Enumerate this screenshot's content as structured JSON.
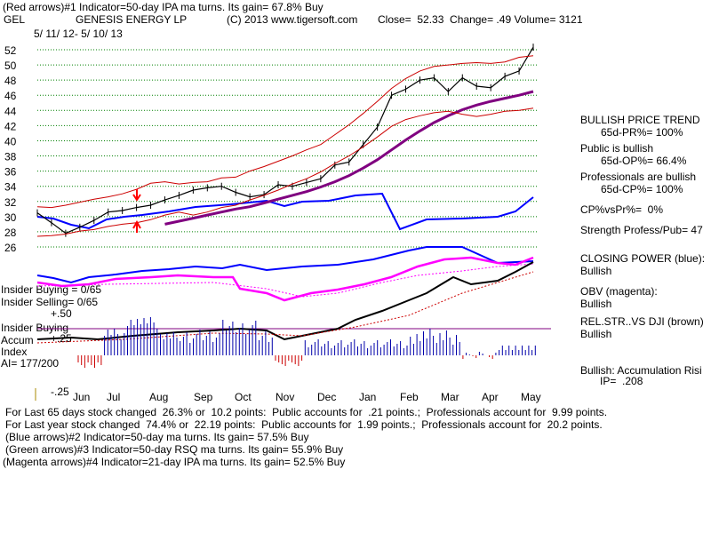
{
  "header": {
    "red_arrows_line": "(Red arrows)#1 Indicator=50-day IPA ma turns. Its gain= 67.8% Buy",
    "symbol": "GEL",
    "company": "GENESIS ENERGY LP",
    "copyright": "(C) 2013 www.tigersoft.com",
    "quote": "Close=  52.33  Change= .49 Volume= 3121",
    "date_range": "5/ 11/ 12- 5/ 10/ 13"
  },
  "right_panel": {
    "bullish_trend": "BULLISH PRICE TREND",
    "pr": "65d-PR%= 100%",
    "public_bullish": "Public is bullish",
    "op": "65d-OP%= 66.4%",
    "pros_bullish": "Professionals are bullish",
    "cp": "65d-CP%= 100%",
    "cpvspr": "CP%vsPr%=  0%",
    "strength": "Strength Profess/Pub= 47",
    "closing_power_title": "CLOSING POWER (blue):",
    "closing_power_value": "Bullish",
    "obv_title": "OBV (magenta):",
    "obv_value": "Bullish",
    "relstr_title": "REL.STR..VS DJI (brown)",
    "relstr_value": "Bullish",
    "accum_risk": "Bullish: Accumulation Risi",
    "ip": "IP=  .208"
  },
  "left_labels": {
    "insider_buying_count": "Insider Buying = 0/65",
    "insider_selling_count": "Insider Selling= 0/65",
    "plus_fifty": "+.50",
    "insider_buying": "Insider Buying",
    "accum": "Accum",
    "plus_twentyfive": "+.25",
    "index": "Index",
    "ai": "AI= 177/200",
    "minus_twentyfive": "-.25"
  },
  "footer": {
    "line1": "For Last 65 days stock changed  26.3% or  10.2 points:  Public accounts for  .21 points.;  Professionals account for  9.99 points.",
    "line2": "For Last year stock changed  74.4% or  22.19 points:  Public accounts for  1.99 points.;  Professionals account for  20.2 points.",
    "line3": "(Blue arrows)#2 Indicator=50-day ma turns. Its gain= 57.5% Buy",
    "line4": "(Green arrows)#3 Indicator=50-day RSQ ma turns. Its gain= 55.9% Buy",
    "line5": "(Magenta arrows)#4 Indicator=21-day IPA ma turns. Its gain= 52.5% Buy"
  },
  "colors": {
    "price": "#000000",
    "bands": "#cc0000",
    "ma50": "#800080",
    "ma_red": "#cc0000",
    "relstr": "#0000ff",
    "closing_power": "#0000ff",
    "obv": "#ff00ff",
    "black_line": "#000000",
    "accum_bars": "#0000aa",
    "grid": "#008000"
  },
  "chart_data": {
    "type": "line",
    "title": "GENESIS ENERGY LP (GEL)",
    "xlabel": "",
    "ylabel": "",
    "ylim": [
      24,
      54
    ],
    "y_ticks": [
      26,
      28,
      30,
      32,
      34,
      36,
      38,
      40,
      42,
      44,
      46,
      48,
      50,
      52
    ],
    "x_ticks": [
      "Jun",
      "Jul",
      "Aug",
      "Sep",
      "Oct",
      "Nov",
      "Dec",
      "Jan",
      "Feb",
      "Mar",
      "Apr",
      "May"
    ],
    "series": [
      {
        "name": "Close",
        "values": [
          30.5,
          29.2,
          27.8,
          28.6,
          29.5,
          30.6,
          30.8,
          31.2,
          31.5,
          32.2,
          32.8,
          33.5,
          33.8,
          34.0,
          33.2,
          32.6,
          32.9,
          34.2,
          34.0,
          34.5,
          35.0,
          36.8,
          37.2,
          39.5,
          41.8,
          46.0,
          46.8,
          48.0,
          48.3,
          46.5,
          48.3,
          47.2,
          47.0,
          48.5,
          49.2,
          52.33
        ]
      },
      {
        "name": "50-day MA",
        "values": [
          null,
          null,
          null,
          null,
          null,
          null,
          null,
          null,
          null,
          29.0,
          29.4,
          29.8,
          30.2,
          30.6,
          31.0,
          31.3,
          31.8,
          32.3,
          32.8,
          33.3,
          33.9,
          34.6,
          35.4,
          36.4,
          37.5,
          38.8,
          40.1,
          41.3,
          42.4,
          43.3,
          44.1,
          44.7,
          45.2,
          45.6,
          46.0,
          46.5
        ]
      },
      {
        "name": "Upper Band",
        "values": [
          31.3,
          31.2,
          31.5,
          31.9,
          32.3,
          32.6,
          33.0,
          33.6,
          34.4,
          34.6,
          34.3,
          34.5,
          34.6,
          35.1,
          35.2,
          36.0,
          36.6,
          37.3,
          38.0,
          38.8,
          39.5,
          40.8,
          42.1,
          43.6,
          45.2,
          46.9,
          48.2,
          49.2,
          49.8,
          50.0,
          50.2,
          50.3,
          50.2,
          50.4,
          51.0,
          51.2
        ]
      },
      {
        "name": "Lower Band",
        "values": [
          27.4,
          27.5,
          27.7,
          28.1,
          28.3,
          28.7,
          29.0,
          29.2,
          29.6,
          30.2,
          30.6,
          30.2,
          30.6,
          31.2,
          31.5,
          32.2,
          32.8,
          33.5,
          34.3,
          35.0,
          35.9,
          37.0,
          38.0,
          39.2,
          40.5,
          41.9,
          42.8,
          43.3,
          43.7,
          43.9,
          43.5,
          43.2,
          43.5,
          43.9,
          44.0,
          44.3
        ]
      }
    ]
  }
}
